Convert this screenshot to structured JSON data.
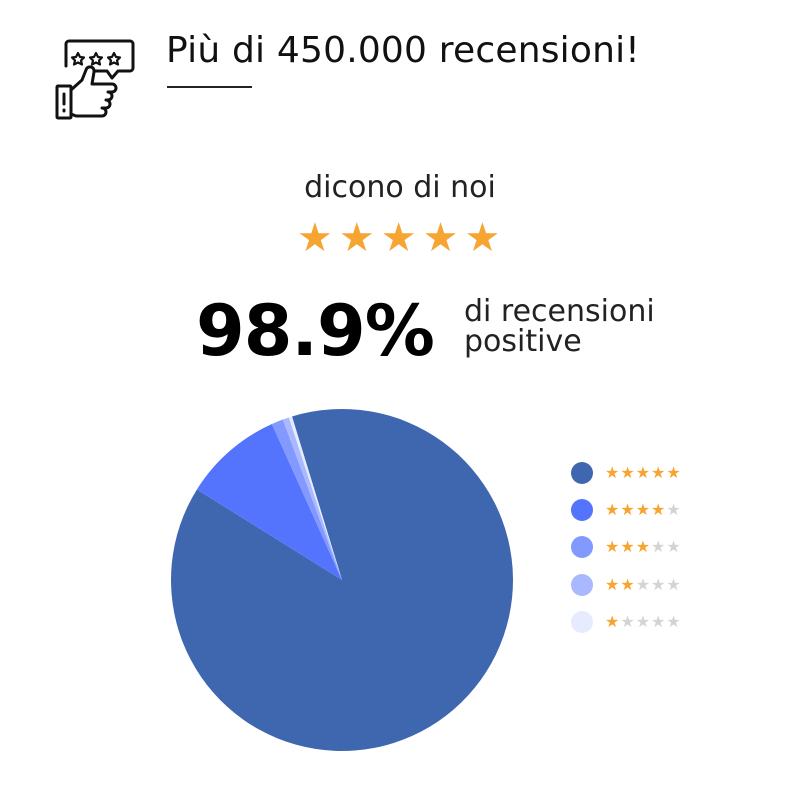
{
  "header": {
    "icon": "thumbs-up-review-icon",
    "title": "Più di 450.000 recensioni!"
  },
  "rating": {
    "subtitle": "dicono di noi",
    "stars": 5,
    "percentage": "98.9%",
    "caption_line1": "di recensioni",
    "caption_line2": "positive"
  },
  "colors": {
    "star_on": "#f7a532",
    "star_off": "#d4d4d4"
  },
  "chart_data": {
    "type": "pie",
    "title": "",
    "categories": [
      "5 stelle",
      "4 stelle",
      "3 stelle",
      "2 stelle",
      "1 stella"
    ],
    "legend_stars": [
      5,
      4,
      3,
      2,
      1
    ],
    "values": [
      88.6,
      9.4,
      1.1,
      0.6,
      0.3
    ],
    "colors": [
      "#3f67b0",
      "#5474fd",
      "#8299ff",
      "#a9b8ff",
      "#e6ebff"
    ],
    "legend_position": "right"
  }
}
